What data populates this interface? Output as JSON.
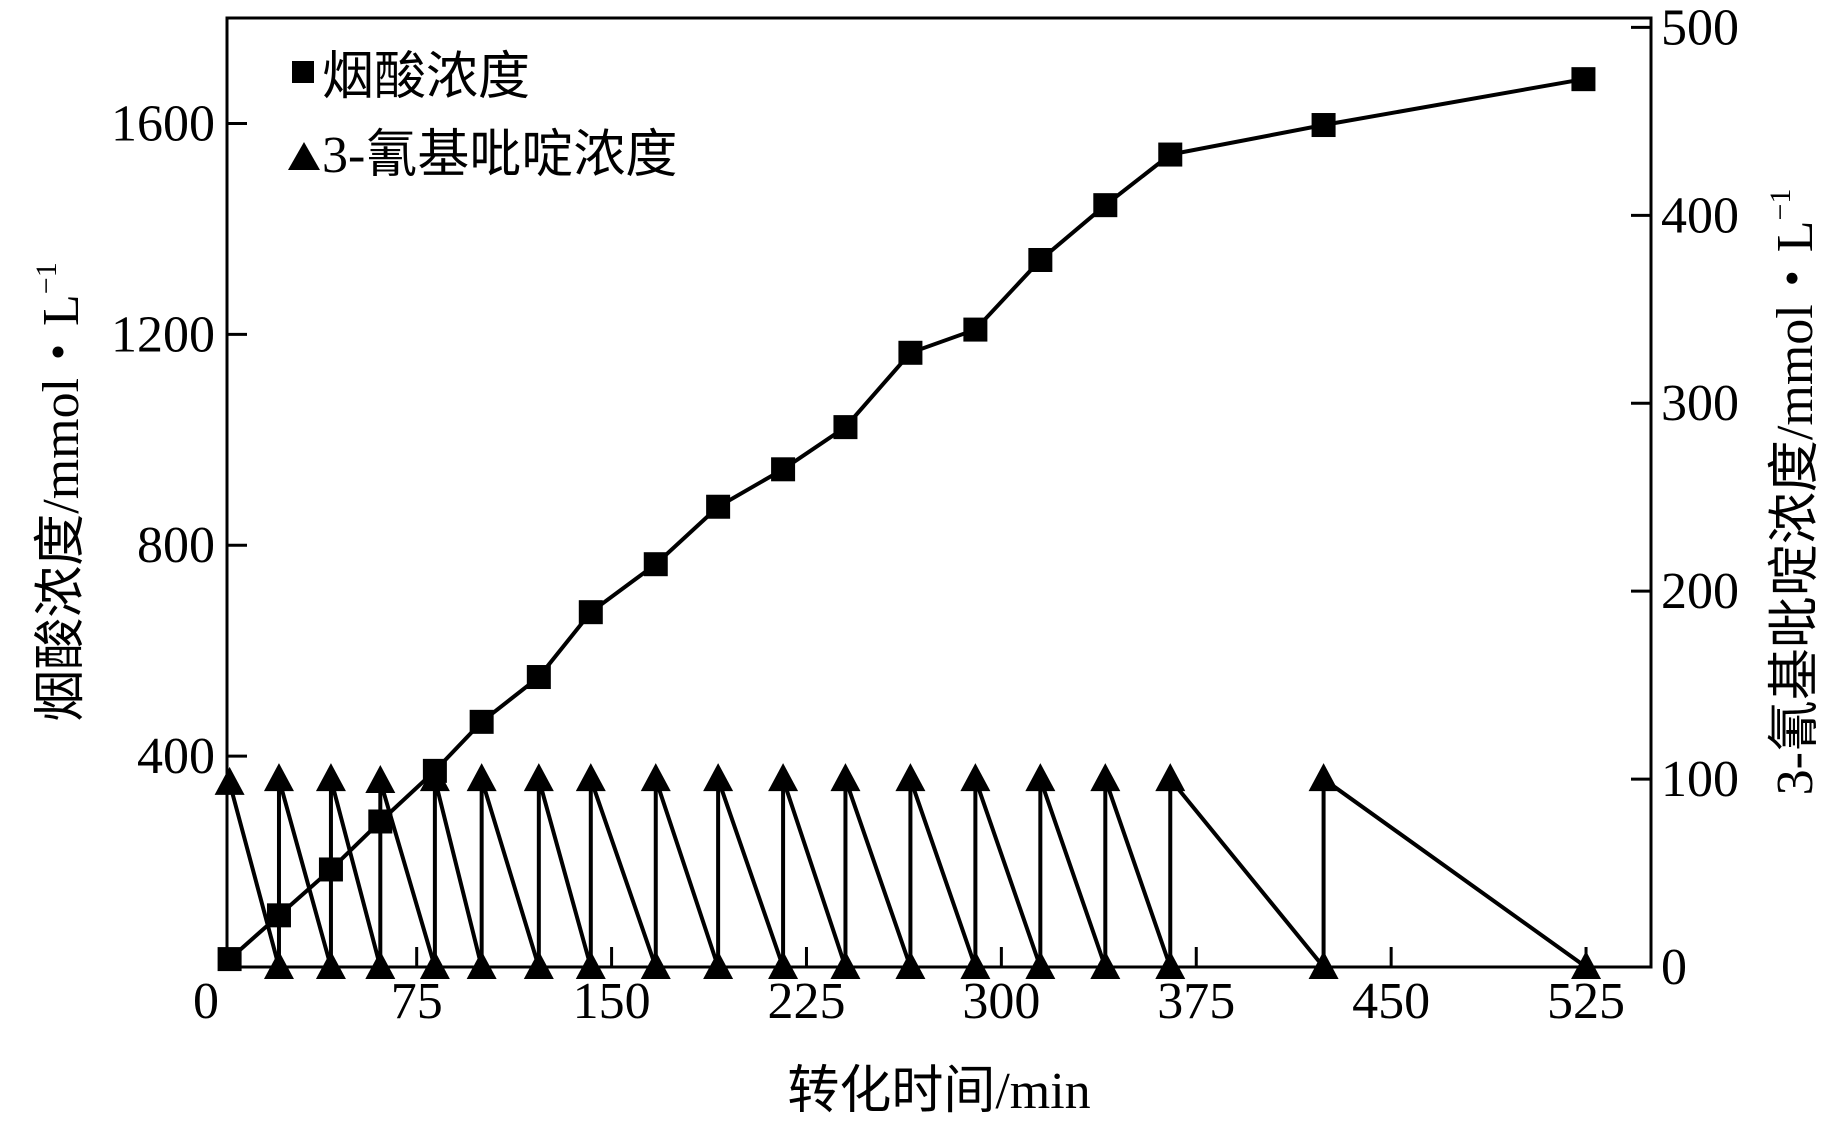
{
  "chart_data": {
    "type": "line",
    "xlabel": "转化时间/min",
    "ylabel_left": "烟酸浓度/mmol・L",
    "ylabel_right": "3-氰基吡啶浓度/mmol・L",
    "ylabel_superscript": "−1",
    "xlim": [
      2,
      550
    ],
    "ylim_left": [
      0,
      1800
    ],
    "ylim_right": [
      0,
      505
    ],
    "xticks": [
      0,
      75,
      150,
      225,
      300,
      375,
      450,
      525
    ],
    "xtick_labels": [
      "0",
      "75",
      "150",
      "225",
      "300",
      "375",
      "450",
      "525"
    ],
    "yticks_left": [
      400,
      800,
      1200,
      1600
    ],
    "ytick_labels_left": [
      "400",
      "800",
      "1200",
      "1600"
    ],
    "yticks_right": [
      0,
      100,
      200,
      300,
      400,
      500
    ],
    "ytick_labels_right": [
      "0",
      "100",
      "200",
      "300",
      "400",
      "500"
    ],
    "grid": false,
    "legend_position": "top-left",
    "series": [
      {
        "name": "烟酸浓度",
        "axis": "left",
        "marker": "square",
        "x": [
          3,
          22,
          42,
          61,
          82,
          100,
          122,
          142,
          167,
          191,
          216,
          240,
          265,
          290,
          315,
          340,
          365,
          424,
          524
        ],
        "y": [
          15,
          98,
          185,
          276,
          372,
          465,
          550,
          673,
          764,
          873,
          944,
          1024,
          1165,
          1209,
          1341,
          1445,
          1541,
          1597,
          1684
        ]
      },
      {
        "name": "3-氰基吡啶浓度",
        "axis": "right",
        "marker": "triangle",
        "x": [
          3,
          22,
          22,
          42,
          42,
          61,
          61,
          82,
          82,
          100,
          100,
          122,
          122,
          142,
          142,
          167,
          167,
          191,
          191,
          216,
          216,
          240,
          240,
          265,
          265,
          290,
          290,
          315,
          315,
          340,
          340,
          365,
          365,
          424,
          424,
          525
        ],
        "y": [
          98,
          0,
          100,
          0,
          100,
          0,
          99,
          0,
          100,
          0,
          100,
          0,
          100,
          0,
          100,
          0,
          100,
          0,
          100,
          0,
          100,
          0,
          100,
          0,
          100,
          0,
          100,
          0,
          100,
          0,
          100,
          0,
          100,
          0,
          100,
          0
        ]
      }
    ],
    "colors": {
      "line": "#000000",
      "background": "#ffffff"
    }
  }
}
